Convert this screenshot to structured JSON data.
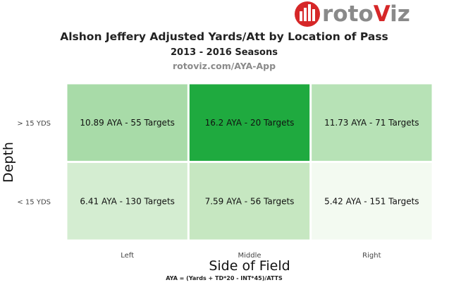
{
  "logo": {
    "text_part1": "roto",
    "text_part2": "V",
    "text_part3": "iz",
    "accent_color": "#d62728",
    "gray_color": "#8a8a8a"
  },
  "chart_data": {
    "type": "heatmap",
    "title": "Alshon Jeffery Adjusted Yards/Att by Location of Pass",
    "subtitle": "2013 - 2016 Seasons",
    "source": "rotoviz.com/AYA-App",
    "xlabel": "Side of Field",
    "ylabel": "Depth",
    "footnote": "AYA = (Yards + TD*20 - INT*45)/ATTS",
    "x_categories": [
      "Left",
      "Middle",
      "Right"
    ],
    "y_categories": [
      "> 15 YDS",
      "< 15 YDS"
    ],
    "cells": [
      {
        "row": "> 15 YDS",
        "col": "Left",
        "aya": 10.89,
        "targets": 55,
        "label": "10.89 AYA - 55 Targets",
        "color": "#a8dba8"
      },
      {
        "row": "> 15 YDS",
        "col": "Middle",
        "aya": 16.2,
        "targets": 20,
        "label": "16.2 AYA - 20 Targets",
        "color": "#1faa3f"
      },
      {
        "row": "> 15 YDS",
        "col": "Right",
        "aya": 11.73,
        "targets": 71,
        "label": "11.73 AYA - 71 Targets",
        "color": "#b7e2b6"
      },
      {
        "row": "< 15 YDS",
        "col": "Left",
        "aya": 6.41,
        "targets": 130,
        "label": "6.41 AYA - 130 Targets",
        "color": "#d4edd1"
      },
      {
        "row": "< 15 YDS",
        "col": "Middle",
        "aya": 7.59,
        "targets": 56,
        "label": "7.59 AYA - 56 Targets",
        "color": "#c6e7c1"
      },
      {
        "row": "< 15 YDS",
        "col": "Right",
        "aya": 5.42,
        "targets": 151,
        "label": "5.42 AYA - 151 Targets",
        "color": "#f3faf1"
      }
    ],
    "grid": false,
    "legend": "none"
  }
}
